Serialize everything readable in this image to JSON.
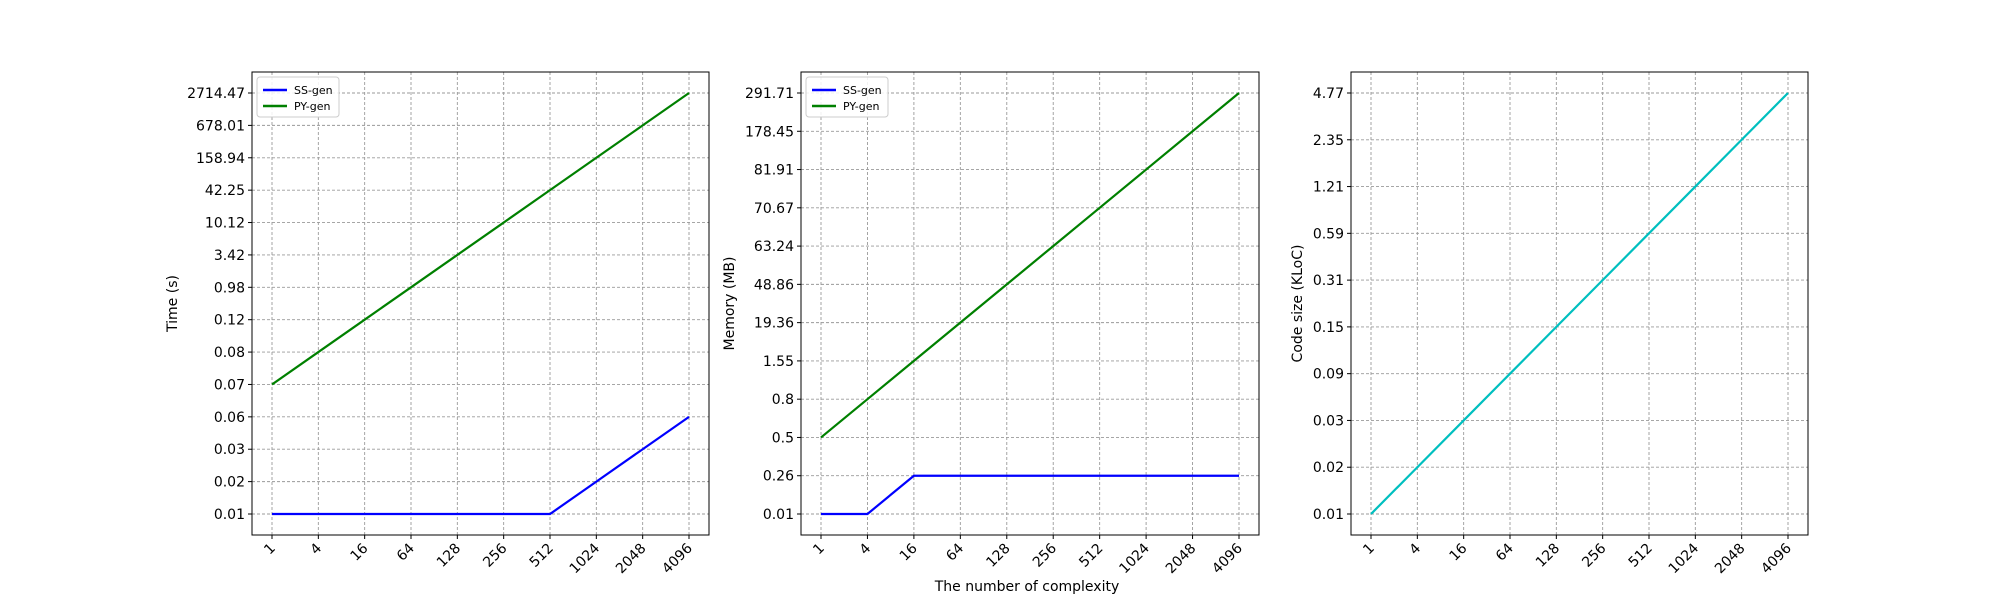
{
  "figure": {
    "xlabel": "The number of complexity"
  },
  "chart_data": [
    {
      "type": "line",
      "ylabel": "Time (s)",
      "categories": [
        "1",
        "4",
        "16",
        "64",
        "128",
        "256",
        "512",
        "1024",
        "2048",
        "4096"
      ],
      "yticks": [
        "0.01",
        "0.02",
        "0.03",
        "0.06",
        "0.07",
        "0.08",
        "0.12",
        "0.98",
        "3.42",
        "10.12",
        "42.25",
        "158.94",
        "678.01",
        "2714.47"
      ],
      "grid": true,
      "legend_position": "top-left",
      "series": [
        {
          "name": "SS-gen",
          "color": "#0000ff",
          "values": [
            "0.01",
            "0.01",
            "0.01",
            "0.01",
            "0.01",
            "0.01",
            "0.01",
            "0.02",
            "0.03",
            "0.06"
          ]
        },
        {
          "name": "PY-gen",
          "color": "#008000",
          "values": [
            "0.07",
            "0.08",
            "0.12",
            "0.98",
            "3.42",
            "10.12",
            "42.25",
            "158.94",
            "678.01",
            "2714.47"
          ]
        }
      ]
    },
    {
      "type": "line",
      "ylabel": "Memory (MB)",
      "categories": [
        "1",
        "4",
        "16",
        "64",
        "128",
        "256",
        "512",
        "1024",
        "2048",
        "4096"
      ],
      "yticks": [
        "0.01",
        "0.26",
        "0.5",
        "0.8",
        "1.55",
        "19.36",
        "48.86",
        "63.24",
        "70.67",
        "81.91",
        "178.45",
        "291.71"
      ],
      "grid": true,
      "legend_position": "top-left",
      "series": [
        {
          "name": "SS-gen",
          "color": "#0000ff",
          "values": [
            "0.01",
            "0.01",
            "0.26",
            "0.26",
            "0.26",
            "0.26",
            "0.26",
            "0.26",
            "0.26",
            "0.26"
          ]
        },
        {
          "name": "PY-gen",
          "color": "#008000",
          "values": [
            "0.5",
            "0.8",
            "1.55",
            "19.36",
            "48.86",
            "63.24",
            "70.67",
            "81.91",
            "178.45",
            "291.71"
          ]
        }
      ]
    },
    {
      "type": "line",
      "ylabel": "Code size (KLoC)",
      "categories": [
        "1",
        "4",
        "16",
        "64",
        "128",
        "256",
        "512",
        "1024",
        "2048",
        "4096"
      ],
      "yticks": [
        "0.01",
        "0.02",
        "0.03",
        "0.09",
        "0.15",
        "0.31",
        "0.59",
        "1.21",
        "2.35",
        "4.77"
      ],
      "grid": true,
      "series": [
        {
          "color": "#00bfbf",
          "values": [
            "0.01",
            "0.02",
            "0.03",
            "0.09",
            "0.15",
            "0.31",
            "0.59",
            "1.21",
            "2.35",
            "4.77"
          ]
        }
      ]
    }
  ]
}
